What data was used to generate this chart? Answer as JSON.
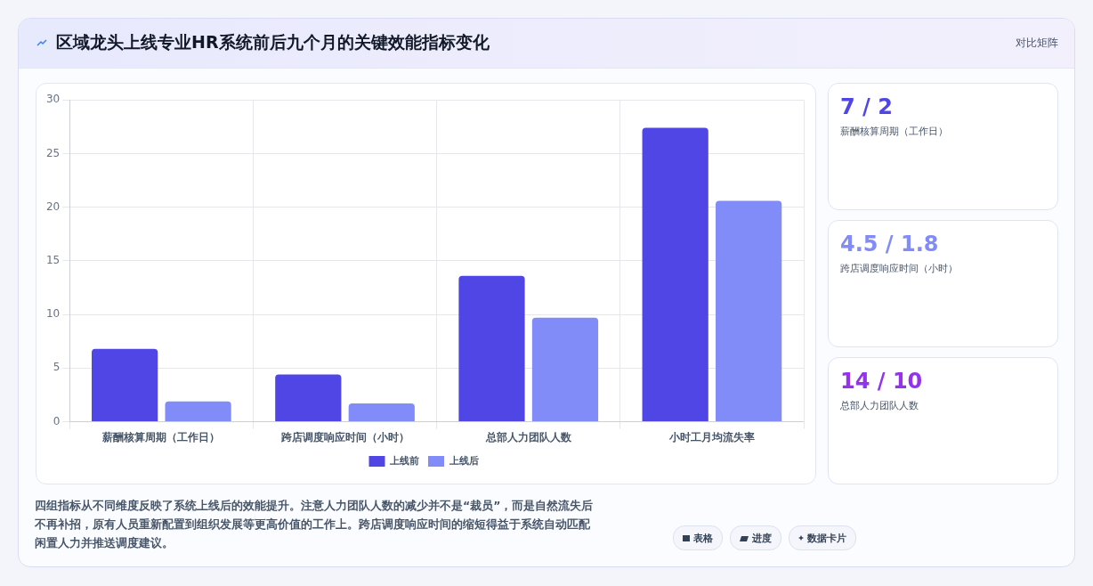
{
  "chart_data": [
    {
      "type": "bar",
      "title": "区域龙头上线专业HR系统前后九个月的关键效能指标变化",
      "categories": [
        "薪酬核算周期（工作日）",
        "跨店调度响应时间（小时）",
        "总部人力团队人数",
        "小时工月均流失率"
      ],
      "series": [
        {
          "name": "上线前",
          "color": "#4f46e5",
          "values": [
            6.8,
            4.4,
            13.6,
            27.4
          ]
        },
        {
          "name": "上线后",
          "color": "#818cf8",
          "values": [
            1.9,
            1.7,
            9.7,
            20.6
          ]
        }
      ],
      "ylim": [
        0,
        30
      ],
      "yticks": [
        0,
        5,
        10,
        15,
        20,
        25,
        30
      ],
      "grid": true,
      "legend": "bottom",
      "annotations": [
        "四组指标从不同维度反映了系统上线后的效能提升。注意人力团队人数的减少并不是“裁员”，而是自然流失后不再补招，原有人员重新配置到组织发展等更高价值的工作上。跨店调度响应时间的缩短得益于系统自动匹配闲置人力并推送调度建议。",
        "对比矩阵",
        "表格",
        "进度",
        "数据卡片"
      ]
    },
    {
      "type": "other",
      "annotations": [
        "7 / 2",
        "薪酬核算周期（工作日）",
        "4.5 / 1.8",
        "跨店调度响应时间（小时）",
        "14 / 10",
        "总部人力团队人数"
      ]
    }
  ]
}
